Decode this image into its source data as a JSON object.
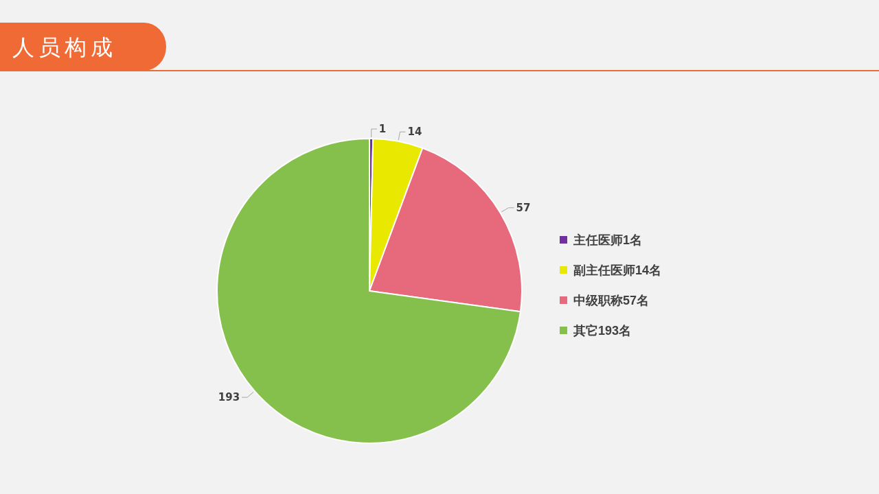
{
  "chart_data": {
    "type": "pie",
    "title": "人员构成",
    "categories": [
      "主任医师1名",
      "副主任医师14名",
      "中级职称57名",
      "其它193名"
    ],
    "values": [
      1,
      14,
      57,
      193
    ],
    "colors": [
      "#7030a0",
      "#e8e800",
      "#e66a7c",
      "#86c04c"
    ],
    "data_labels": true,
    "legend": "right"
  }
}
